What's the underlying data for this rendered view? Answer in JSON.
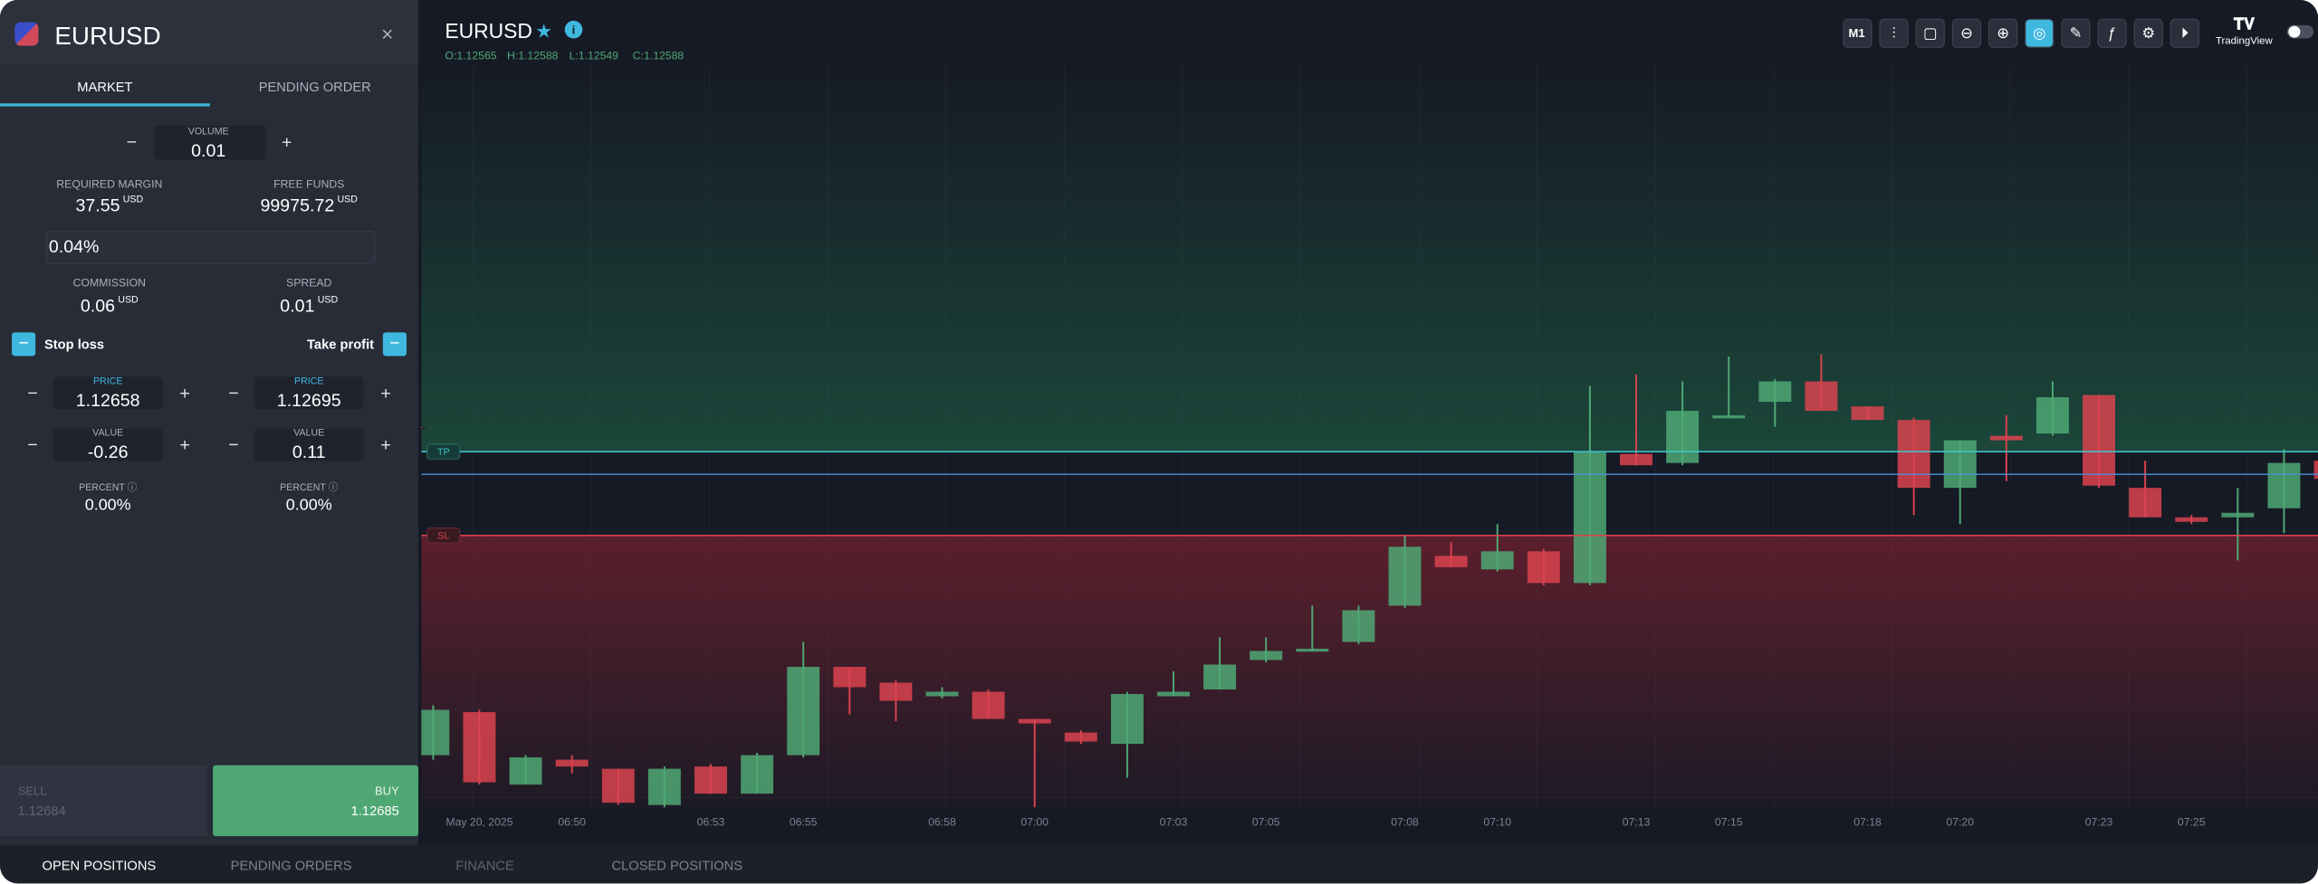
{
  "panel": {
    "symbol": "EURUSD",
    "close": "×",
    "tabs": [
      "MARKET",
      "PENDING ORDER"
    ],
    "volume": {
      "minus": "−",
      "label": "VOLUME",
      "value": 0.01,
      "plus": "+"
    },
    "required_margin": {
      "label": "REQUIRED MARGIN",
      "value": 37.55,
      "unit": "USD"
    },
    "free_funds": {
      "label": "FREE FUNDS",
      "value": 99975.72,
      "unit": "USD"
    },
    "percent": "0.04%",
    "commission": {
      "label": "COMMISSION",
      "value": 0.06,
      "unit": "USD"
    },
    "spread": {
      "label": "SPREAD",
      "value": 0.01,
      "unit": "USD"
    },
    "stop_loss": {
      "title": "Stop loss",
      "price_label": "PRICE",
      "price": 1.12658,
      "value_label": "VALUE",
      "value": -0.26,
      "percent_label": "PERCENT",
      "percent": "0.00%"
    },
    "take_profit": {
      "title": "Take profit",
      "price_label": "PRICE",
      "price": 1.12695,
      "value_label": "VALUE",
      "value": 0.11,
      "percent_label": "PERCENT",
      "percent": "0.00%"
    },
    "sell": {
      "label": "SELL",
      "price": 1.12684
    },
    "buy": {
      "label": "BUY",
      "price": 1.12685
    }
  },
  "bottom_tabs": [
    "OPEN POSITIONS",
    "PENDING ORDERS",
    "FINANCE",
    "CLOSED POSITIONS"
  ],
  "chart_header": {
    "symbol": "EURUSD",
    "ohlc": [
      "O:1.12565",
      "H:1.12588",
      "L:1.12549",
      "C:1.12588"
    ],
    "interval": "M1",
    "brand": "TradingView",
    "tp_tag": "TP",
    "sl_tag": "SL"
  },
  "chart_data": {
    "type": "candlestick",
    "up_color": "#4fa874",
    "down_color": "#d9434f",
    "ylim": [
      1.12537,
      1.12867
    ],
    "categories": [
      null,
      "May 20, 2025",
      null,
      "06:50",
      null,
      null,
      "06:53",
      null,
      "06:55",
      null,
      null,
      "06:58",
      null,
      "07:00",
      null,
      null,
      "07:03",
      null,
      "07:05",
      null,
      null,
      "07:08",
      null,
      "07:10",
      null,
      null,
      "07:13",
      null,
      "07:15",
      null,
      null,
      "07:18",
      null,
      "07:20",
      null,
      null,
      "07:23",
      null,
      "07:25",
      null,
      null,
      null
    ],
    "open": [
      1.12561,
      1.1258,
      1.12548,
      1.12559,
      1.12555,
      1.12539,
      1.12556,
      1.12544,
      1.12561,
      1.126,
      1.12593,
      1.12587,
      1.12589,
      1.12577,
      1.12571,
      1.12566,
      1.12587,
      1.1259,
      1.12603,
      1.12607,
      1.12611,
      1.12627,
      1.12649,
      1.12643,
      1.12651,
      1.12637,
      1.12694,
      1.1269,
      1.1271,
      1.12717,
      1.12726,
      1.12715,
      1.12709,
      1.12679,
      1.12702,
      1.12703,
      1.1272,
      1.12679,
      1.12666,
      1.12666,
      1.1267,
      1.12691
    ],
    "high": [
      1.12583,
      1.12581,
      1.12561,
      1.12561,
      1.12555,
      1.12556,
      1.12557,
      1.12562,
      1.12611,
      1.126,
      1.12594,
      1.12591,
      1.1259,
      1.12577,
      1.12572,
      1.12589,
      1.12598,
      1.12613,
      1.12613,
      1.12627,
      1.12627,
      1.12658,
      1.12655,
      1.12663,
      1.12652,
      1.12724,
      1.12729,
      1.12726,
      1.12737,
      1.12727,
      1.12738,
      1.12715,
      1.1271,
      1.127,
      1.12711,
      1.12726,
      1.1272,
      1.12691,
      1.12667,
      1.12679,
      1.12696,
      1.12691
    ],
    "low": [
      1.12559,
      1.12548,
      1.12548,
      1.12553,
      1.12539,
      1.12538,
      1.12544,
      1.12544,
      1.1256,
      1.12579,
      1.12576,
      1.12586,
      1.12577,
      1.12538,
      1.12566,
      1.12551,
      1.12587,
      1.1259,
      1.12602,
      1.12607,
      1.1261,
      1.12626,
      1.12644,
      1.12642,
      1.12636,
      1.12636,
      1.12689,
      1.12689,
      1.1271,
      1.12706,
      1.12713,
      1.12709,
      1.12667,
      1.12663,
      1.12682,
      1.12702,
      1.12679,
      1.12666,
      1.12663,
      1.12647,
      1.12659,
      1.12682
    ],
    "close": [
      1.12581,
      1.12549,
      1.1256,
      1.12556,
      1.1254,
      1.12555,
      1.12544,
      1.12561,
      1.126,
      1.12591,
      1.12585,
      1.12589,
      1.12577,
      1.12575,
      1.12567,
      1.12588,
      1.12589,
      1.12601,
      1.12607,
      1.12608,
      1.12625,
      1.12653,
      1.12644,
      1.12651,
      1.12637,
      1.12695,
      1.12689,
      1.12713,
      1.12711,
      1.12726,
      1.12713,
      1.12709,
      1.12679,
      1.127,
      1.127,
      1.12719,
      1.1268,
      1.12666,
      1.12664,
      1.12668,
      1.1269,
      1.12683
    ]
  }
}
